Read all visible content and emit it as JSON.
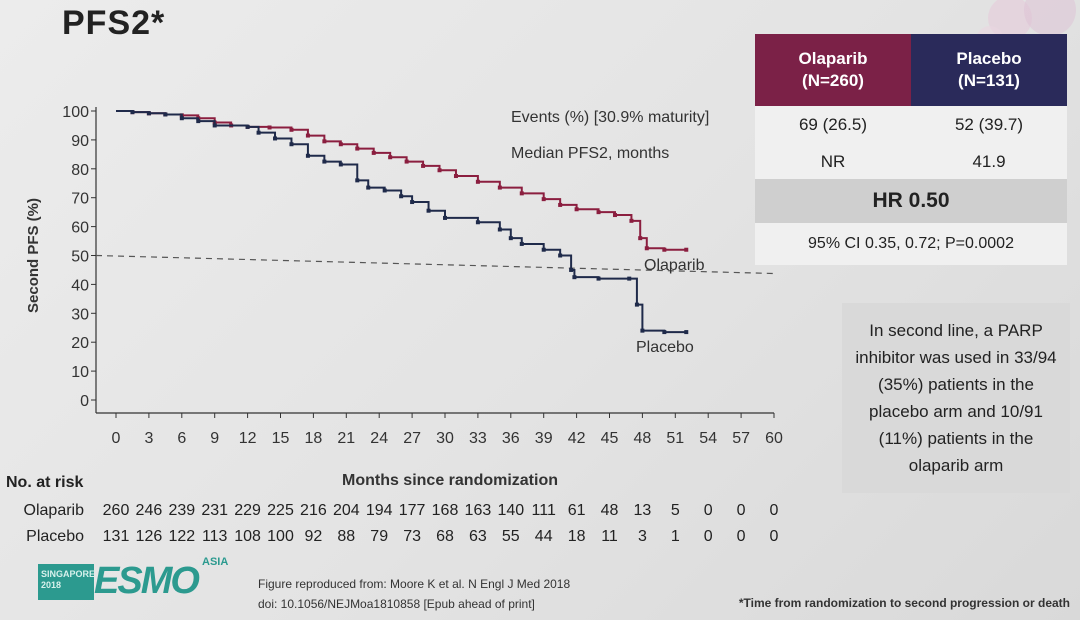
{
  "slide_title": "PFS2*",
  "chart_data": {
    "type": "line",
    "title": "",
    "xlabel": "Months since randomization",
    "ylabel": "Second PFS (%)",
    "xlim": [
      0,
      60
    ],
    "ylim": [
      0,
      100
    ],
    "x_ticks": [
      0,
      3,
      6,
      9,
      12,
      15,
      18,
      21,
      24,
      27,
      30,
      33,
      36,
      39,
      42,
      45,
      48,
      51,
      54,
      57,
      60
    ],
    "y_ticks": [
      0,
      10,
      20,
      30,
      40,
      50,
      60,
      70,
      80,
      90,
      100
    ],
    "reference_line": {
      "y": 50,
      "style": "dashed"
    },
    "series": [
      {
        "name": "Olaparib",
        "color": "#8b1e3f",
        "step": true,
        "points": [
          [
            0,
            100
          ],
          [
            1.5,
            99.6
          ],
          [
            3,
            99.2
          ],
          [
            4.5,
            98.8
          ],
          [
            6,
            98.5
          ],
          [
            7.5,
            97.5
          ],
          [
            9,
            96
          ],
          [
            10.5,
            95
          ],
          [
            12,
            94.5
          ],
          [
            14,
            94.3
          ],
          [
            16,
            93.5
          ],
          [
            17.5,
            91.5
          ],
          [
            19,
            89.5
          ],
          [
            20.5,
            88.5
          ],
          [
            22,
            87
          ],
          [
            23.5,
            85.5
          ],
          [
            25,
            84
          ],
          [
            26.5,
            82.5
          ],
          [
            28,
            81
          ],
          [
            29.5,
            79.5
          ],
          [
            31,
            77.5
          ],
          [
            33,
            75.5
          ],
          [
            35,
            73.5
          ],
          [
            37,
            71.5
          ],
          [
            39,
            69.5
          ],
          [
            40.5,
            67.5
          ],
          [
            42,
            66
          ],
          [
            44,
            65
          ],
          [
            45.5,
            64
          ],
          [
            47,
            62
          ],
          [
            47.8,
            56
          ],
          [
            48.4,
            52.5
          ],
          [
            50,
            52
          ],
          [
            52,
            52
          ]
        ]
      },
      {
        "name": "Placebo",
        "color": "#1f2a4a",
        "step": true,
        "points": [
          [
            0,
            100
          ],
          [
            1.5,
            99.6
          ],
          [
            3,
            99.2
          ],
          [
            4.5,
            98.8
          ],
          [
            6,
            97.5
          ],
          [
            7.5,
            96.5
          ],
          [
            9,
            95
          ],
          [
            12,
            94.5
          ],
          [
            13,
            92.5
          ],
          [
            14.5,
            90.5
          ],
          [
            16,
            88.5
          ],
          [
            17.5,
            84.5
          ],
          [
            19,
            82.5
          ],
          [
            20.5,
            81.5
          ],
          [
            22,
            76
          ],
          [
            23,
            73.5
          ],
          [
            24.5,
            72.5
          ],
          [
            26,
            70.5
          ],
          [
            27,
            68.5
          ],
          [
            28.5,
            65.5
          ],
          [
            30,
            63
          ],
          [
            33,
            61.5
          ],
          [
            35,
            59
          ],
          [
            36,
            56
          ],
          [
            37,
            54
          ],
          [
            39,
            52
          ],
          [
            40.5,
            50
          ],
          [
            41.5,
            45
          ],
          [
            41.8,
            42.5
          ],
          [
            44,
            42
          ],
          [
            46.8,
            42
          ],
          [
            47.5,
            33
          ],
          [
            48,
            24
          ],
          [
            50,
            23.5
          ],
          [
            52,
            23.5
          ]
        ]
      }
    ],
    "series_labels": [
      "Olaparib",
      "Placebo"
    ],
    "at_risk": {
      "header": "No. at risk",
      "rows": [
        {
          "name": "Olaparib",
          "values": [
            "260",
            "246",
            "239",
            "231",
            "229",
            "225",
            "216",
            "204",
            "194",
            "177",
            "168",
            "163",
            "140",
            "111",
            "61",
            "48",
            "13",
            "5",
            "0",
            "0",
            "0"
          ]
        },
        {
          "name": "Placebo",
          "values": [
            "131",
            "126",
            "122",
            "113",
            "108",
            "100",
            "92",
            "88",
            "79",
            "73",
            "68",
            "63",
            "55",
            "44",
            "18",
            "11",
            "3",
            "1",
            "0",
            "0",
            "0"
          ]
        }
      ]
    }
  },
  "stats_labels": {
    "events": "Events (%) [30.9% maturity]",
    "median": "Median PFS2, months"
  },
  "stats_table": {
    "olaparib_header": "Olaparib\n(N=260)",
    "placebo_header": "Placebo\n(N=131)",
    "olaparib_color": "#7b2147",
    "placebo_color": "#2a2a5a",
    "events_olaparib": "69 (26.5)",
    "events_placebo": "52 (39.7)",
    "median_olaparib": "NR",
    "median_placebo": "41.9",
    "hr": "HR 0.50",
    "ci": "95% CI 0.35, 0.72; P=0.0002"
  },
  "note": "In second line, a PARP inhibitor was used in 33/94 (35%) patients in the placebo arm and 10/91 (11%) patients in the olaparib arm",
  "footer": {
    "logo_location": "SINGAPORE\n2018",
    "logo_main": "ESMO",
    "logo_asia": "ASIA",
    "ref_line1": "Figure reproduced from: Moore K et al. N Engl J Med 2018",
    "ref_line2": "doi: 10.1056/NEJMoa1810858 [Epub ahead of print]",
    "footnote": "*Time from randomization to second progression or death"
  }
}
